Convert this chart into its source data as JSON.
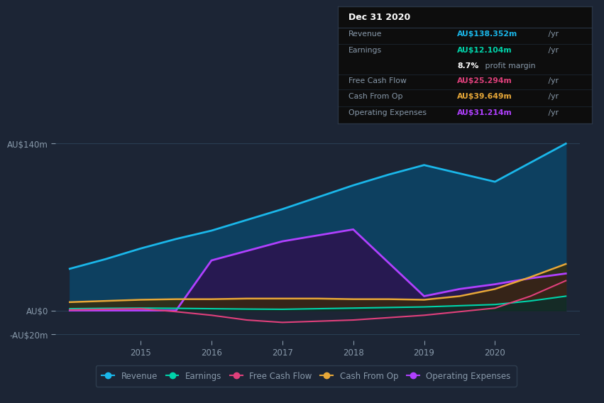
{
  "bg_color": "#1c2535",
  "plot_bg_color": "#1c2535",
  "years": [
    2014.0,
    2014.5,
    2015.0,
    2015.5,
    2016.0,
    2016.5,
    2017.0,
    2017.5,
    2018.0,
    2018.5,
    2019.0,
    2019.5,
    2020.0,
    2020.5,
    2021.0
  ],
  "revenue": [
    35,
    43,
    52,
    60,
    67,
    76,
    85,
    95,
    105,
    114,
    122,
    115,
    108,
    124,
    140
  ],
  "earnings": [
    1.5,
    1.8,
    2.0,
    1.8,
    1.5,
    1.2,
    1.0,
    1.5,
    2.0,
    2.5,
    3.0,
    4.0,
    5.0,
    8.0,
    12.0
  ],
  "free_cash_flow": [
    0.5,
    1.0,
    1.5,
    -1.0,
    -4.0,
    -8.0,
    -10.0,
    -9.0,
    -8.0,
    -6.0,
    -4.0,
    -1.0,
    2.0,
    12.0,
    25.0
  ],
  "cash_from_op": [
    7,
    8,
    9,
    9.5,
    9.5,
    10,
    10,
    10,
    9.5,
    9.5,
    9.0,
    12,
    18,
    28,
    39
  ],
  "operating_expenses": [
    0,
    0,
    0,
    0,
    42,
    50,
    58,
    63,
    68,
    40,
    12,
    18,
    22,
    27,
    31
  ],
  "revenue_color": "#1ab7ea",
  "earnings_color": "#00d4aa",
  "fcf_color": "#e0407b",
  "cashop_color": "#e8a838",
  "opex_color": "#b040ff",
  "revenue_fill_color": "#0d4060",
  "opex_fill_color": "#2a1550",
  "ylim_min": -25,
  "ylim_max": 155,
  "ytick_vals": [
    -20,
    0,
    140
  ],
  "ytick_labels": [
    "-AU$20m",
    "AU$0",
    "AU$140m"
  ],
  "xtick_vals": [
    2015,
    2016,
    2017,
    2018,
    2019,
    2020
  ],
  "grid_color": "#2a3f55",
  "text_color": "#8899aa",
  "info_box": {
    "date": "Dec 31 2020",
    "revenue_label": "Revenue",
    "revenue_value": "AU$138.352m",
    "revenue_color": "#1ab7ea",
    "earnings_label": "Earnings",
    "earnings_value": "AU$12.104m",
    "earnings_color": "#00d4aa",
    "margin_pct": "8.7%",
    "margin_text": " profit margin",
    "fcf_label": "Free Cash Flow",
    "fcf_value": "AU$25.294m",
    "fcf_color": "#e0407b",
    "cashop_label": "Cash From Op",
    "cashop_value": "AU$39.649m",
    "cashop_color": "#e8a838",
    "opex_label": "Operating Expenses",
    "opex_value": "AU$31.214m",
    "opex_color": "#b040ff"
  }
}
